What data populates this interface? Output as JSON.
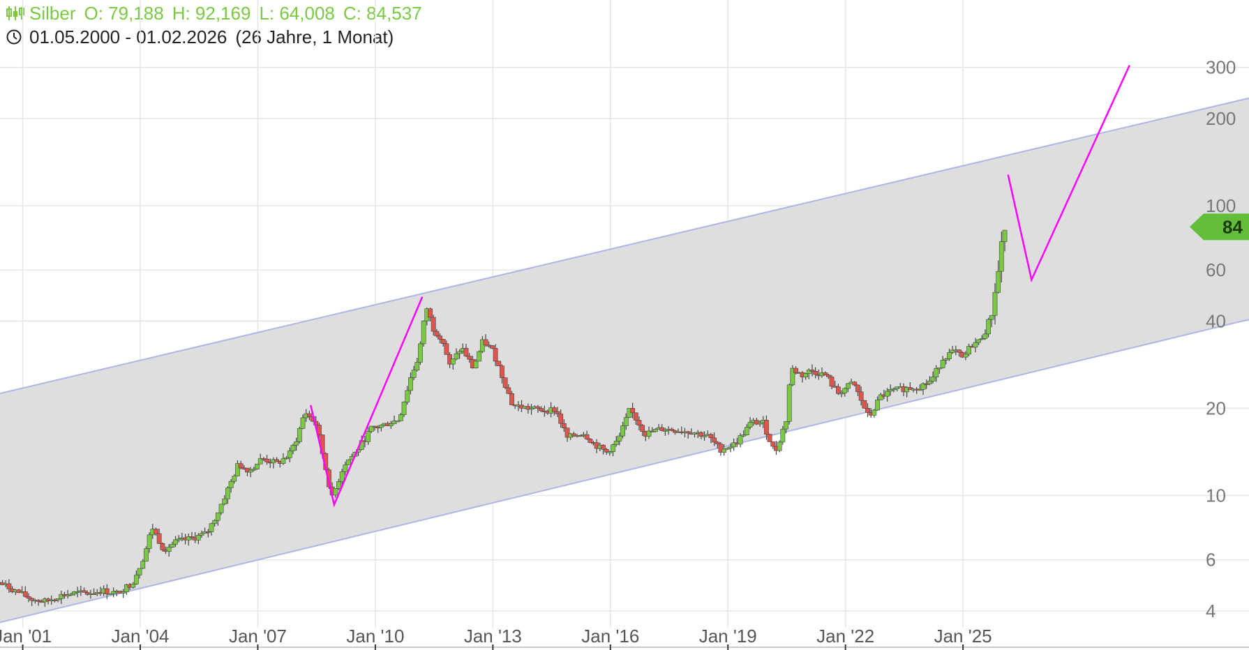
{
  "header": {
    "symbol": "Silber",
    "open": "O: 79,188",
    "high": "H: 92,169",
    "low": "L: 64,008",
    "close": "C: 84,537",
    "date_range": "01.05.2000 - 01.02.2026",
    "duration": "(26 Jahre, 1 Monat)",
    "ohlc_icon": "candlestick-icon",
    "clock_icon": "clock-icon"
  },
  "colors": {
    "up": "#7ac943",
    "down": "#e0544c",
    "wick": "#444444",
    "channel_fill": "#dedede",
    "channel_line": "#aab7e8",
    "projection": "#ff00ff",
    "price_tag": "#62bd3a",
    "grid": "#e6e6e6"
  },
  "current_price_label": "84",
  "chart_data": {
    "type": "candlestick",
    "y_scale": "log",
    "ylim": [
      3.5,
      320
    ],
    "y_ticks": [
      {
        "value": 300,
        "label": "300"
      },
      {
        "value": 200,
        "label": "200"
      },
      {
        "value": 100,
        "label": "100"
      },
      {
        "value": 60,
        "label": "60"
      },
      {
        "value": 40,
        "label": "40"
      },
      {
        "value": 20,
        "label": "20"
      },
      {
        "value": 10,
        "label": "10"
      },
      {
        "value": 6,
        "label": "6"
      },
      {
        "value": 4,
        "label": "4"
      }
    ],
    "x_ticks": [
      "Jan '01",
      "Jan '04",
      "Jan '07",
      "Jan '10",
      "Jan '13",
      "Jan '16",
      "Jan '19",
      "Jan '22",
      "Jan '25"
    ],
    "x_tick_years": [
      2001,
      2004,
      2007,
      2010,
      2013,
      2016,
      2019,
      2022,
      2025
    ],
    "xlim": [
      2000.42,
      2032.3
    ],
    "series_close": [
      [
        2000.4,
        5.0
      ],
      [
        2000.8,
        4.7
      ],
      [
        2001.2,
        4.4
      ],
      [
        2001.6,
        4.3
      ],
      [
        2001.9,
        4.5
      ],
      [
        2002.3,
        4.6
      ],
      [
        2002.7,
        4.6
      ],
      [
        2003.0,
        4.7
      ],
      [
        2003.4,
        4.6
      ],
      [
        2003.8,
        5.0
      ],
      [
        2004.1,
        6.2
      ],
      [
        2004.3,
        7.8
      ],
      [
        2004.6,
        6.5
      ],
      [
        2004.9,
        6.9
      ],
      [
        2005.3,
        7.1
      ],
      [
        2005.7,
        7.4
      ],
      [
        2005.95,
        8.6
      ],
      [
        2006.3,
        11.0
      ],
      [
        2006.5,
        12.8
      ],
      [
        2006.8,
        12.2
      ],
      [
        2007.1,
        13.4
      ],
      [
        2007.5,
        12.9
      ],
      [
        2007.8,
        13.8
      ],
      [
        2008.0,
        15.8
      ],
      [
        2008.2,
        19.5
      ],
      [
        2008.5,
        17.5
      ],
      [
        2008.8,
        11.2
      ],
      [
        2008.9,
        9.8
      ],
      [
        2009.2,
        12.8
      ],
      [
        2009.5,
        14.1
      ],
      [
        2009.9,
        17.0
      ],
      [
        2010.2,
        17.5
      ],
      [
        2010.6,
        18.3
      ],
      [
        2010.9,
        25.5
      ],
      [
        2011.1,
        30.0
      ],
      [
        2011.3,
        45.0
      ],
      [
        2011.5,
        37.0
      ],
      [
        2011.7,
        35.0
      ],
      [
        2011.9,
        28.0
      ],
      [
        2012.2,
        32.5
      ],
      [
        2012.5,
        27.5
      ],
      [
        2012.75,
        34.2
      ],
      [
        2013.0,
        31.5
      ],
      [
        2013.3,
        24.5
      ],
      [
        2013.5,
        20.5
      ],
      [
        2013.9,
        20.0
      ],
      [
        2014.3,
        19.7
      ],
      [
        2014.6,
        19.8
      ],
      [
        2014.9,
        15.8
      ],
      [
        2015.3,
        16.5
      ],
      [
        2015.6,
        15.0
      ],
      [
        2015.9,
        14.1
      ],
      [
        2016.2,
        15.5
      ],
      [
        2016.5,
        19.8
      ],
      [
        2016.9,
        16.3
      ],
      [
        2017.3,
        17.0
      ],
      [
        2017.7,
        16.8
      ],
      [
        2018.1,
        16.6
      ],
      [
        2018.5,
        16.0
      ],
      [
        2018.8,
        14.4
      ],
      [
        2019.2,
        15.1
      ],
      [
        2019.6,
        17.9
      ],
      [
        2019.9,
        17.8
      ],
      [
        2020.2,
        14.0
      ],
      [
        2020.5,
        18.5
      ],
      [
        2020.6,
        27.5
      ],
      [
        2020.9,
        26.0
      ],
      [
        2021.1,
        27.0
      ],
      [
        2021.5,
        26.0
      ],
      [
        2021.8,
        22.5
      ],
      [
        2022.2,
        24.5
      ],
      [
        2022.6,
        18.5
      ],
      [
        2022.9,
        22.0
      ],
      [
        2023.2,
        23.0
      ],
      [
        2023.6,
        23.5
      ],
      [
        2023.9,
        23.8
      ],
      [
        2024.2,
        25.0
      ],
      [
        2024.5,
        30.0
      ],
      [
        2024.8,
        31.5
      ],
      [
        2025.0,
        29.5
      ],
      [
        2025.2,
        33.0
      ],
      [
        2025.4,
        34.0
      ],
      [
        2025.6,
        37.5
      ],
      [
        2025.7,
        40.0
      ],
      [
        2025.8,
        50.0
      ],
      [
        2025.9,
        59.0
      ],
      [
        2026.0,
        79.0
      ],
      [
        2026.1,
        84.5
      ]
    ],
    "channel": {
      "upper": [
        [
          2000.42,
          22.5
        ],
        [
          2032.3,
          235
        ]
      ],
      "lower": [
        [
          2000.42,
          3.65
        ],
        [
          2032.3,
          40.5
        ]
      ]
    },
    "projection_lines": [
      [
        [
          2008.35,
          20.5
        ],
        [
          2008.95,
          9.3
        ],
        [
          2011.2,
          48.5
        ]
      ],
      [
        [
          2026.15,
          128
        ],
        [
          2026.75,
          55.5
        ],
        [
          2029.25,
          305
        ]
      ]
    ],
    "current_price": 84.537
  }
}
